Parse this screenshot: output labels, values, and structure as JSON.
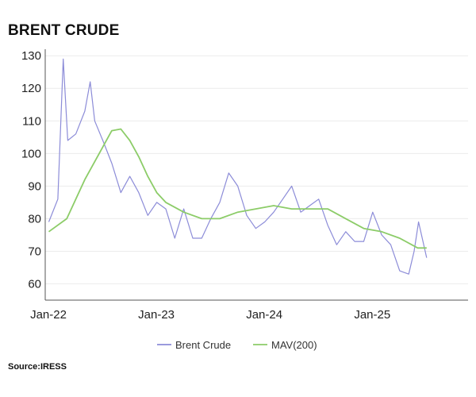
{
  "chart_data": {
    "type": "line",
    "title": "BRENT CRUDE",
    "source": "Source:IRESS",
    "xlabel": "",
    "ylabel": "",
    "x_tick_labels": [
      "Jan-22",
      "Jan-23",
      "Jan-24",
      "Jan-25"
    ],
    "y_ticks": [
      60,
      70,
      80,
      90,
      100,
      110,
      120,
      130
    ],
    "ylim": [
      55,
      132
    ],
    "xlim": [
      "2022-01",
      "2025-12"
    ],
    "grid": "horizontal",
    "legend_position": "bottom",
    "series": [
      {
        "name": "Brent Crude",
        "color": "#8c8cd8",
        "x": [
          "2022-01",
          "2022-02",
          "2022-03",
          "2022-03",
          "2022-04",
          "2022-05",
          "2022-06",
          "2022-06",
          "2022-07",
          "2022-08",
          "2022-09",
          "2022-10",
          "2022-11",
          "2022-12",
          "2023-01",
          "2023-02",
          "2023-03",
          "2023-04",
          "2023-05",
          "2023-06",
          "2023-07",
          "2023-08",
          "2023-09",
          "2023-10",
          "2023-11",
          "2023-12",
          "2024-01",
          "2024-02",
          "2024-03",
          "2024-04",
          "2024-05",
          "2024-06",
          "2024-07",
          "2024-08",
          "2024-09",
          "2024-10",
          "2024-11",
          "2024-12",
          "2025-01",
          "2025-02",
          "2025-03",
          "2025-04",
          "2025-05",
          "2025-06",
          "2025-06",
          "2025-07"
        ],
        "values": [
          79,
          86,
          129,
          104,
          106,
          113,
          122,
          110,
          104,
          97,
          88,
          93,
          88,
          81,
          85,
          83,
          74,
          83,
          74,
          74,
          80,
          85,
          94,
          90,
          81,
          77,
          79,
          82,
          86,
          90,
          82,
          84,
          86,
          78,
          72,
          76,
          73,
          73,
          82,
          75,
          72,
          64,
          63,
          70,
          79,
          68
        ]
      },
      {
        "name": "MAV(200)",
        "color": "#8ccc68",
        "x": [
          "2022-01",
          "2022-03",
          "2022-05",
          "2022-07",
          "2022-08",
          "2022-09",
          "2022-10",
          "2022-11",
          "2022-12",
          "2023-01",
          "2023-02",
          "2023-04",
          "2023-06",
          "2023-08",
          "2023-10",
          "2023-12",
          "2024-02",
          "2024-04",
          "2024-06",
          "2024-08",
          "2024-10",
          "2024-12",
          "2025-02",
          "2025-04",
          "2025-06",
          "2025-07"
        ],
        "values": [
          76,
          80,
          92,
          102,
          107,
          107.5,
          104,
          99,
          93,
          88,
          85,
          82,
          80,
          80,
          82,
          83,
          84,
          83,
          83,
          83,
          80,
          77,
          76,
          74,
          71,
          71
        ]
      }
    ]
  }
}
